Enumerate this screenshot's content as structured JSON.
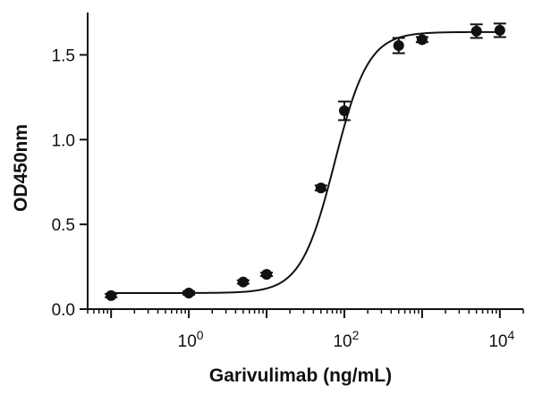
{
  "chart_data": {
    "type": "scatter",
    "title": "",
    "xlabel": "Garivulimab (ng/mL)",
    "ylabel": "OD450nm",
    "xscale": "log",
    "xlim": [
      0.05,
      20000
    ],
    "ylim": [
      0,
      1.75
    ],
    "x_ticks": [
      {
        "value": 1,
        "base": "10",
        "exp": "0"
      },
      {
        "value": 100,
        "base": "10",
        "exp": "2"
      },
      {
        "value": 10000,
        "base": "10",
        "exp": "4"
      }
    ],
    "y_ticks": [
      {
        "value": 0,
        "label": "0.0"
      },
      {
        "value": 0.5,
        "label": "0.5"
      },
      {
        "value": 1.0,
        "label": "1.0"
      },
      {
        "value": 1.5,
        "label": "1.5"
      }
    ],
    "grid": false,
    "series": [
      {
        "points": [
          {
            "x": 0.1,
            "y": 0.08,
            "err": 0.01
          },
          {
            "x": 1,
            "y": 0.095,
            "err": 0.01
          },
          {
            "x": 5,
            "y": 0.16,
            "err": 0.01
          },
          {
            "x": 10,
            "y": 0.205,
            "err": 0.01
          },
          {
            "x": 50,
            "y": 0.715,
            "err": 0.015
          },
          {
            "x": 100,
            "y": 1.17,
            "err": 0.055
          },
          {
            "x": 500,
            "y": 1.555,
            "err": 0.045
          },
          {
            "x": 1000,
            "y": 1.59,
            "err": 0.015
          },
          {
            "x": 5000,
            "y": 1.64,
            "err": 0.04
          },
          {
            "x": 10000,
            "y": 1.645,
            "err": 0.04
          }
        ],
        "fit": {
          "model": "4PL",
          "bottom": 0.095,
          "top": 1.635,
          "ec50": 75,
          "hill": 2.0
        }
      }
    ],
    "colors": {
      "axis": "#111111",
      "points": "#111111",
      "curve": "#111111"
    }
  }
}
